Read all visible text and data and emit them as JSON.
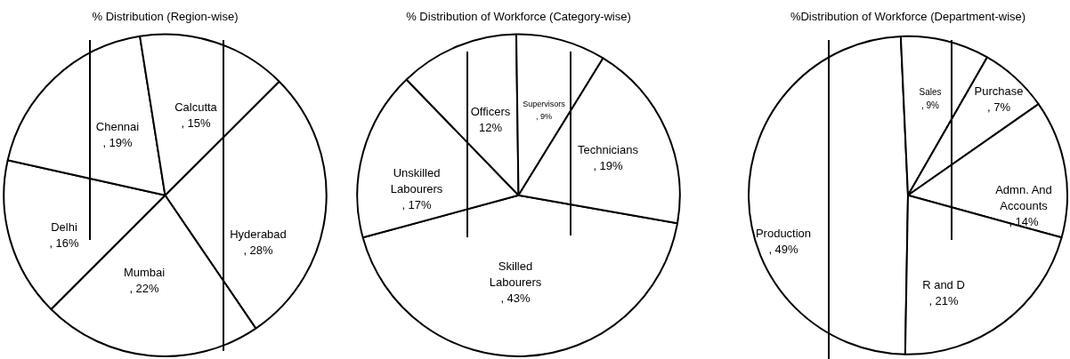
{
  "chart_data": [
    {
      "type": "pie",
      "title": "% Distribution (Region-wise)",
      "categories": [
        "Hyderabad",
        "Mumbai",
        "Delhi",
        "Chennai",
        "Calcutta"
      ],
      "values": [
        28,
        22,
        16,
        19,
        15
      ],
      "value_labels": [
        ", 28%",
        ", 22%",
        ", 16%",
        ", 19%",
        ", 15%"
      ],
      "colors": [
        "#ffffff",
        "#ffffff",
        "#ffffff",
        "#ffffff",
        "#ffffff"
      ],
      "legend": false
    },
    {
      "type": "pie",
      "title": "% Distribution of Workforce (Category-wise)",
      "categories": [
        "Skilled Labourers",
        "Unskilled Labourers",
        "Officers",
        "Supervisors",
        "Technicians"
      ],
      "values": [
        43,
        17,
        12,
        9,
        19
      ],
      "value_labels": [
        ", 43%",
        ", 17%",
        "12%",
        ", 9%",
        ", 19%"
      ],
      "colors": [
        "#ffffff",
        "#ffffff",
        "#ffffff",
        "#ffffff",
        "#ffffff"
      ],
      "legend": false
    },
    {
      "type": "pie",
      "title": "%Distribution of Workforce (Department-wise)",
      "categories": [
        "Production",
        "Sales",
        "Purchase",
        "Admn. And Accounts",
        "R and D"
      ],
      "values": [
        49,
        9,
        7,
        14,
        21
      ],
      "value_labels": [
        ", 49%",
        ", 9%",
        ", 7%",
        ", 14%",
        ", 21%"
      ],
      "colors": [
        "#ffffff",
        "#ffffff",
        "#ffffff",
        "#ffffff",
        "#ffffff"
      ],
      "legend": false
    }
  ]
}
